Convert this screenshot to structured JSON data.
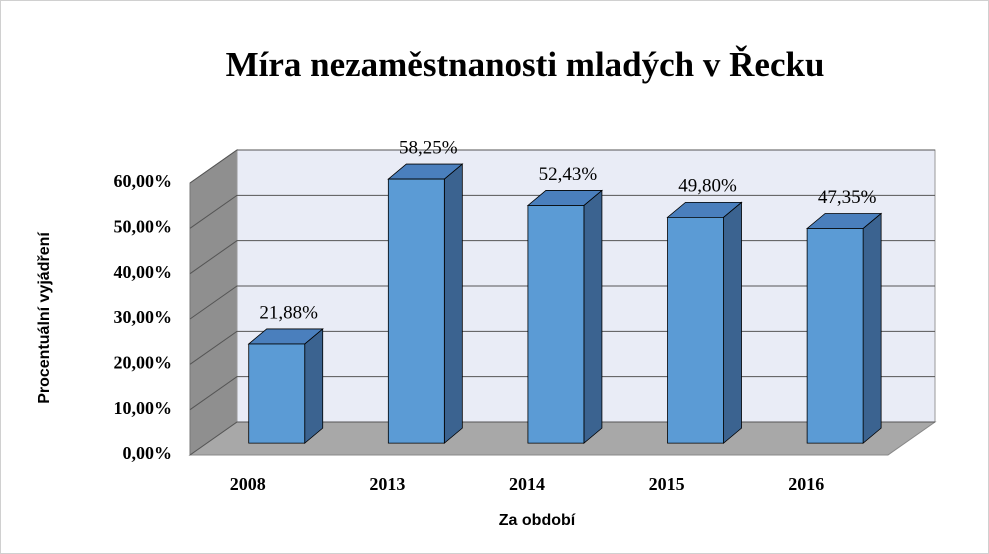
{
  "chart_data": {
    "type": "bar3d",
    "title": "Míra nezaměstnanosti mladých v Řecku",
    "y_label": "Procentuální vyjádření",
    "x_label": "Za období",
    "categories": [
      "2008",
      "2013",
      "2014",
      "2015",
      "2016"
    ],
    "values": [
      21.88,
      58.25,
      52.43,
      49.8,
      47.35
    ],
    "value_labels": [
      "21,88%",
      "58,25%",
      "52,43%",
      "49,80%",
      "47,35%"
    ],
    "color": "#5b9bd5",
    "ylim": [
      0,
      60
    ],
    "yticks": [
      {
        "value": 0,
        "label": "0,00%"
      },
      {
        "value": 10,
        "label": "10,00%"
      },
      {
        "value": 20,
        "label": "20,00%"
      },
      {
        "value": 30,
        "label": "30,00%"
      },
      {
        "value": 40,
        "label": "40,00%"
      },
      {
        "value": 50,
        "label": "50,00%"
      },
      {
        "value": 60,
        "label": "60,00%"
      }
    ],
    "grid": true
  }
}
